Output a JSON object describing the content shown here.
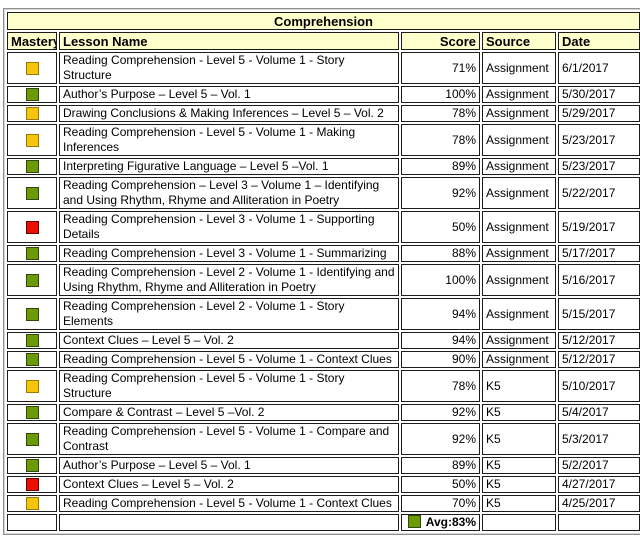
{
  "title": "Comprehension",
  "columns": {
    "mastery": "Mastery",
    "lesson": "Lesson Name",
    "score": "Score",
    "source": "Source",
    "date": "Date"
  },
  "mastery_colors": {
    "green": {
      "fill": "#6b9a04",
      "border": "#33470a"
    },
    "yellow": {
      "fill": "#f5c40d",
      "border": "#9a7d00"
    },
    "red": {
      "fill": "#ec0e00",
      "border": "#5e0000"
    }
  },
  "header_bg": "#ffffcc",
  "rows": [
    {
      "mastery": "yellow",
      "lesson": "Reading Comprehension - Level 5 - Volume 1 - Story Structure",
      "score": "71%",
      "source": "Assignment",
      "date": "6/1/2017"
    },
    {
      "mastery": "green",
      "lesson": "Author’s Purpose – Level 5 – Vol. 1",
      "score": "100%",
      "source": "Assignment",
      "date": "5/30/2017"
    },
    {
      "mastery": "yellow",
      "lesson": "Drawing Conclusions & Making Inferences – Level 5 – Vol. 2",
      "score": "78%",
      "source": "Assignment",
      "date": "5/29/2017"
    },
    {
      "mastery": "yellow",
      "lesson": "Reading Comprehension - Level 5 - Volume 1 - Making Inferences",
      "score": "78%",
      "source": "Assignment",
      "date": "5/23/2017"
    },
    {
      "mastery": "green",
      "lesson": "Interpreting Figurative Language – Level 5 –Vol. 1",
      "score": "89%",
      "source": "Assignment",
      "date": "5/23/2017"
    },
    {
      "mastery": "green",
      "lesson": "Reading Comprehension – Level 3 – Volume 1 – Identifying and Using Rhythm, Rhyme and Alliteration in Poetry",
      "score": "92%",
      "source": "Assignment",
      "date": "5/22/2017"
    },
    {
      "mastery": "red",
      "lesson": "Reading Comprehension - Level 3 - Volume 1 - Supporting Details",
      "score": "50%",
      "source": "Assignment",
      "date": "5/19/2017"
    },
    {
      "mastery": "green",
      "lesson": "Reading Comprehension - Level 3 - Volume 1 - Summarizing",
      "score": "88%",
      "source": "Assignment",
      "date": "5/17/2017"
    },
    {
      "mastery": "green",
      "lesson": "Reading Comprehension - Level 2 - Volume 1 - Identifying and Using Rhythm, Rhyme and Alliteration in Poetry",
      "score": "100%",
      "source": "Assignment",
      "date": "5/16/2017"
    },
    {
      "mastery": "green",
      "lesson": "Reading Comprehension - Level 2 - Volume 1 - Story Elements",
      "score": "94%",
      "source": "Assignment",
      "date": "5/15/2017"
    },
    {
      "mastery": "green",
      "lesson": "Context Clues – Level 5 – Vol. 2",
      "score": "94%",
      "source": "Assignment",
      "date": "5/12/2017"
    },
    {
      "mastery": "green",
      "lesson": "Reading Comprehension - Level 5 - Volume 1 - Context Clues",
      "score": "90%",
      "source": "Assignment",
      "date": "5/12/2017"
    },
    {
      "mastery": "yellow",
      "lesson": "Reading Comprehension - Level 5 - Volume 1 - Story Structure",
      "score": "78%",
      "source": "K5",
      "date": "5/10/2017"
    },
    {
      "mastery": "green",
      "lesson": "Compare & Contrast – Level 5 –Vol. 2",
      "score": "92%",
      "source": "K5",
      "date": "5/4/2017"
    },
    {
      "mastery": "green",
      "lesson": "Reading Comprehension - Level 5 - Volume 1 - Compare and Contrast",
      "score": "92%",
      "source": "K5",
      "date": "5/3/2017"
    },
    {
      "mastery": "green",
      "lesson": "Author’s Purpose – Level 5 – Vol. 1",
      "score": "89%",
      "source": "K5",
      "date": "5/2/2017"
    },
    {
      "mastery": "red",
      "lesson": "Context Clues – Level 5 – Vol. 2",
      "score": "50%",
      "source": "K5",
      "date": "4/27/2017"
    },
    {
      "mastery": "yellow",
      "lesson": "Reading Comprehension - Level 5 - Volume 1 - Context Clues",
      "score": "70%",
      "source": "K5",
      "date": "4/25/2017"
    }
  ],
  "footer": {
    "avg_label": "Avg:83%",
    "avg_mastery": "green"
  }
}
